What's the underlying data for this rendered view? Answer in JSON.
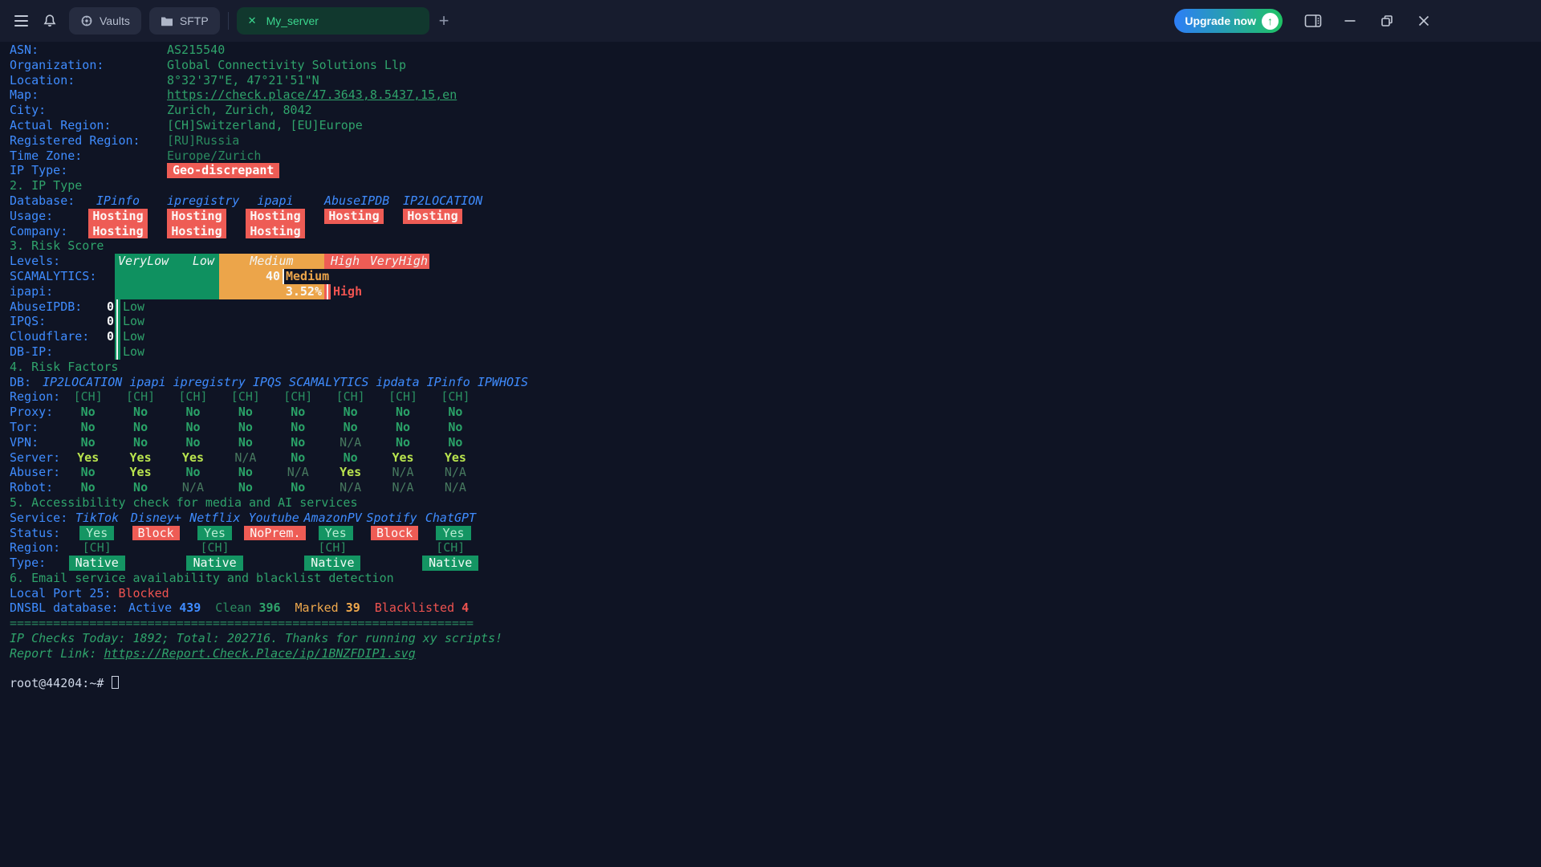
{
  "colors": {
    "background": "#0f1424",
    "titlebar": "#171c2e",
    "accent_blue": "#3f8cff",
    "accent_green": "#2fa36b",
    "tab_active_green": "#3bd68e",
    "status_red": "#ee5c55",
    "status_orange": "#eca54a",
    "bar_green": "#0f9160",
    "lime_yes": "#b9e44e",
    "upgrade_gradient": [
      "#2d7ef7",
      "#1fc364"
    ]
  },
  "titlebar": {
    "tabs": [
      {
        "label": "Vaults",
        "icon": "vault-icon"
      },
      {
        "label": "SFTP",
        "icon": "folder-icon"
      }
    ],
    "active_tab_label": "My_server",
    "new_tab_label": "+",
    "upgrade_label": "Upgrade now",
    "upgrade_arrow": "↑",
    "window_icons": [
      "panel-toggle",
      "minimize",
      "restore",
      "close"
    ]
  },
  "terminal": {
    "info": {
      "rows": [
        {
          "label": "ASN:",
          "value": "AS215540"
        },
        {
          "label": "Organization:",
          "value": "Global Connectivity Solutions Llp"
        },
        {
          "label": "Location:",
          "value": "8°32'37\"E, 47°21'51\"N"
        },
        {
          "label": "Map:",
          "value": "https://check.place/47.3643,8.5437,15,en"
        },
        {
          "label": "City:",
          "value": "Zurich, Zurich, 8042"
        },
        {
          "label": "Actual Region:",
          "value": "[CH]Switzerland, [EU]Europe"
        },
        {
          "label": "Registered Region:",
          "value": "[RU]Russia"
        },
        {
          "label": "Time Zone:",
          "value": "Europe/Zurich"
        },
        {
          "label": "IP Type:",
          "value": "Geo-discrepant"
        }
      ]
    },
    "ip_type": {
      "header": "2. IP Type",
      "db_label": "Database:",
      "databases": [
        "IPinfo",
        "ipregistry",
        "ipapi",
        "AbuseIPDB",
        "IP2LOCATION"
      ],
      "usage_label": "Usage:",
      "usage": [
        "Hosting",
        "Hosting",
        "Hosting",
        "Hosting",
        "Hosting"
      ],
      "company_label": "Company:",
      "company": [
        "Hosting",
        "Hosting",
        "Hosting",
        "",
        ""
      ]
    },
    "risk_score": {
      "header": "3. Risk Score",
      "levels_label": "Levels:",
      "levels": [
        "VeryLow",
        "Low",
        "Medium",
        "High",
        "VeryHigh"
      ],
      "scam": {
        "label": "SCAMALYTICS:",
        "score": "40",
        "level": "Medium"
      },
      "ipapi": {
        "label": "ipapi:",
        "score": "3.52%",
        "level": "High"
      },
      "zero_rows": [
        {
          "label": "AbuseIPDB:",
          "score": "0",
          "level": "Low"
        },
        {
          "label": "IPQS:",
          "score": "0",
          "level": "Low"
        },
        {
          "label": "Cloudflare:",
          "score": "0",
          "level": "Low"
        },
        {
          "label": "DB-IP:",
          "score": "",
          "level": "Low"
        }
      ]
    },
    "risk_factors": {
      "header": "4. Risk Factors",
      "db_label": "DB:",
      "databases": "IP2LOCATION ipapi ipregistry IPQS SCAMALYTICS ipdata IPinfo IPWHOIS",
      "rows": [
        {
          "label": "Region:",
          "values": [
            "[CH]",
            "[CH]",
            "[CH]",
            "[CH]",
            "[CH]",
            "[CH]",
            "[CH]",
            "[CH]"
          ]
        },
        {
          "label": "Proxy:",
          "values": [
            "No",
            "No",
            "No",
            "No",
            "No",
            "No",
            "No",
            "No"
          ]
        },
        {
          "label": "Tor:",
          "values": [
            "No",
            "No",
            "No",
            "No",
            "No",
            "No",
            "No",
            "No"
          ]
        },
        {
          "label": "VPN:",
          "values": [
            "No",
            "No",
            "No",
            "No",
            "No",
            "N/A",
            "No",
            "No"
          ]
        },
        {
          "label": "Server:",
          "values": [
            "Yes",
            "Yes",
            "Yes",
            "N/A",
            "No",
            "No",
            "Yes",
            "Yes"
          ]
        },
        {
          "label": "Abuser:",
          "values": [
            "No",
            "Yes",
            "No",
            "No",
            "N/A",
            "Yes",
            "N/A",
            "N/A"
          ]
        },
        {
          "label": "Robot:",
          "values": [
            "No",
            "No",
            "N/A",
            "No",
            "No",
            "N/A",
            "N/A",
            "N/A"
          ]
        }
      ]
    },
    "accessibility": {
      "header": "5. Accessibility check for media and AI services",
      "service_label": "Service:",
      "services": [
        "TikTok",
        "Disney+",
        "Netflix",
        "Youtube",
        "AmazonPV",
        "Spotify",
        "ChatGPT"
      ],
      "status_label": "Status:",
      "status": [
        "Yes",
        "Block",
        "Yes",
        "NoPrem.",
        "Yes",
        "Block",
        "Yes"
      ],
      "region_label": "Region:",
      "regions": [
        "[CH]",
        "",
        "[CH]",
        "",
        "[CH]",
        "",
        "[CH]"
      ],
      "type_label": "Type:",
      "types": [
        "Native",
        "",
        "Native",
        "",
        "Native",
        "",
        "Native"
      ]
    },
    "email": {
      "header": "6. Email service availability and blacklist detection",
      "port_label": "Local Port 25:",
      "port_status": "Blocked",
      "dnsbl_label": "DNSBL database:",
      "stats": [
        {
          "name": "Active",
          "value": "439"
        },
        {
          "name": "Clean",
          "value": "396"
        },
        {
          "name": "Marked",
          "value": "39"
        },
        {
          "name": "Blacklisted",
          "value": "4"
        }
      ]
    },
    "footer": {
      "separator": "================================================================",
      "checks_line": "IP Checks Today: 1892; Total: 202716. Thanks for running xy scripts!",
      "report_label": "Report Link: ",
      "report_url": "https://Report.Check.Place/ip/1BNZFDIP1.svg"
    },
    "prompt": "root@44204:~# "
  }
}
